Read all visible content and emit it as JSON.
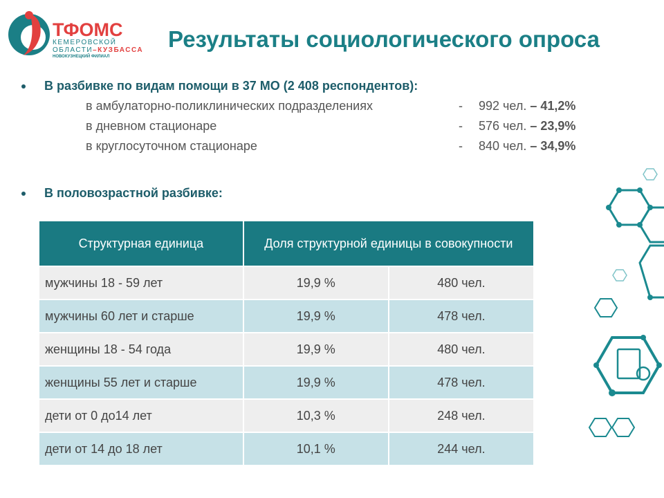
{
  "logo": {
    "name": "ТФОМС",
    "line1": "КЕМЕРОВСКОЙ",
    "line2a": "ОБЛАСТИ",
    "line2b": "–КУЗБАССА",
    "line3": "НОВОКУЗНЕЦКИЙ ФИЛИАЛ"
  },
  "title": "Результаты социологического опроса",
  "section1": {
    "heading": "В разбивке по видам помощи в 37 МО (2 408 респондентов):",
    "items": [
      {
        "label": "в амбулаторно-поликлинических подразделениях",
        "dash": "-",
        "count": "992 чел.",
        "share": "– 41,2%"
      },
      {
        "label": "в дневном стационаре",
        "dash": "-",
        "count": "576 чел.",
        "share": "– 23,9%"
      },
      {
        "label": "в круглосуточном стационаре",
        "dash": "-",
        "count": "840 чел.",
        "share": "– 34,9%"
      }
    ]
  },
  "section2": {
    "heading": "В половозрастной разбивке:"
  },
  "table": {
    "headers": [
      "Структурная единица",
      "Доля структурной единицы в совокупности"
    ],
    "rows": [
      [
        "мужчины 18 - 59 лет",
        "19,9 %",
        "480 чел."
      ],
      [
        "мужчины 60 лет и старше",
        "19,9 %",
        "478 чел."
      ],
      [
        "женщины 18 - 54 года",
        "19,9 %",
        "480 чел."
      ],
      [
        "женщины 55 лет и старше",
        "19,9 %",
        "478 чел."
      ],
      [
        "дети от 0 до14 лет",
        "10,3 %",
        "248 чел."
      ],
      [
        "дети от 14 до 18 лет",
        "10,1 %",
        "244 чел."
      ]
    ]
  }
}
